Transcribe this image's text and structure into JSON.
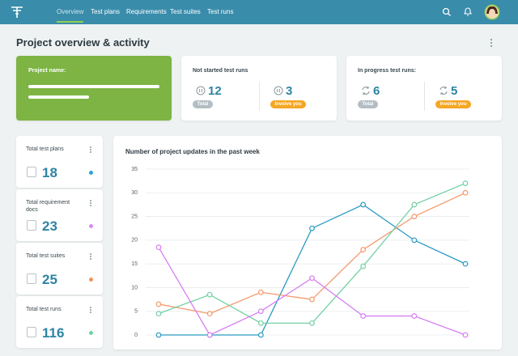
{
  "nav": {
    "items": [
      "Overview",
      "Test plans",
      "Requirements",
      "Test suites",
      "Test runs"
    ],
    "active": 0
  },
  "header": {
    "title": "Project overview & activity"
  },
  "project_card": {
    "label": "Project name:"
  },
  "run_cards": [
    {
      "title": "Not started test runs",
      "total": 12,
      "total_label": "Total",
      "involve": 3,
      "involve_label": "Involve you"
    },
    {
      "title": "In progress test runs:",
      "total": 6,
      "total_label": "Total",
      "involve": 5,
      "involve_label": "Involve you"
    }
  ],
  "stat_cards": [
    {
      "label": "Total test plans",
      "value": 18,
      "color": "#2ea3d3"
    },
    {
      "label": "Total requirement docs",
      "value": 23,
      "color": "#d58cf0"
    },
    {
      "label": "Total test suites",
      "value": 25,
      "color": "#f5925e"
    },
    {
      "label": "Total test runs",
      "value": 116,
      "color": "#6fd3a6"
    }
  ],
  "chart_data": {
    "type": "line",
    "title": "Number of project updates in the past week",
    "ylim": [
      0,
      35
    ],
    "yticks": [
      0,
      5,
      10,
      15,
      20,
      25,
      30,
      35
    ],
    "grid": true,
    "series": [
      {
        "color": "#2a9ac2",
        "values": [
          0,
          0,
          0,
          22.5,
          27.5,
          20,
          15
        ]
      },
      {
        "color": "#f59a6e",
        "values": [
          6.5,
          4.5,
          9,
          7.5,
          18,
          25,
          30
        ]
      },
      {
        "color": "#74d0a4",
        "values": [
          4.5,
          8.5,
          2.5,
          2.5,
          14.5,
          27.5,
          32
        ]
      },
      {
        "color": "#d67ff2",
        "values": [
          18.5,
          0,
          5,
          12,
          4,
          4,
          0
        ]
      }
    ]
  }
}
